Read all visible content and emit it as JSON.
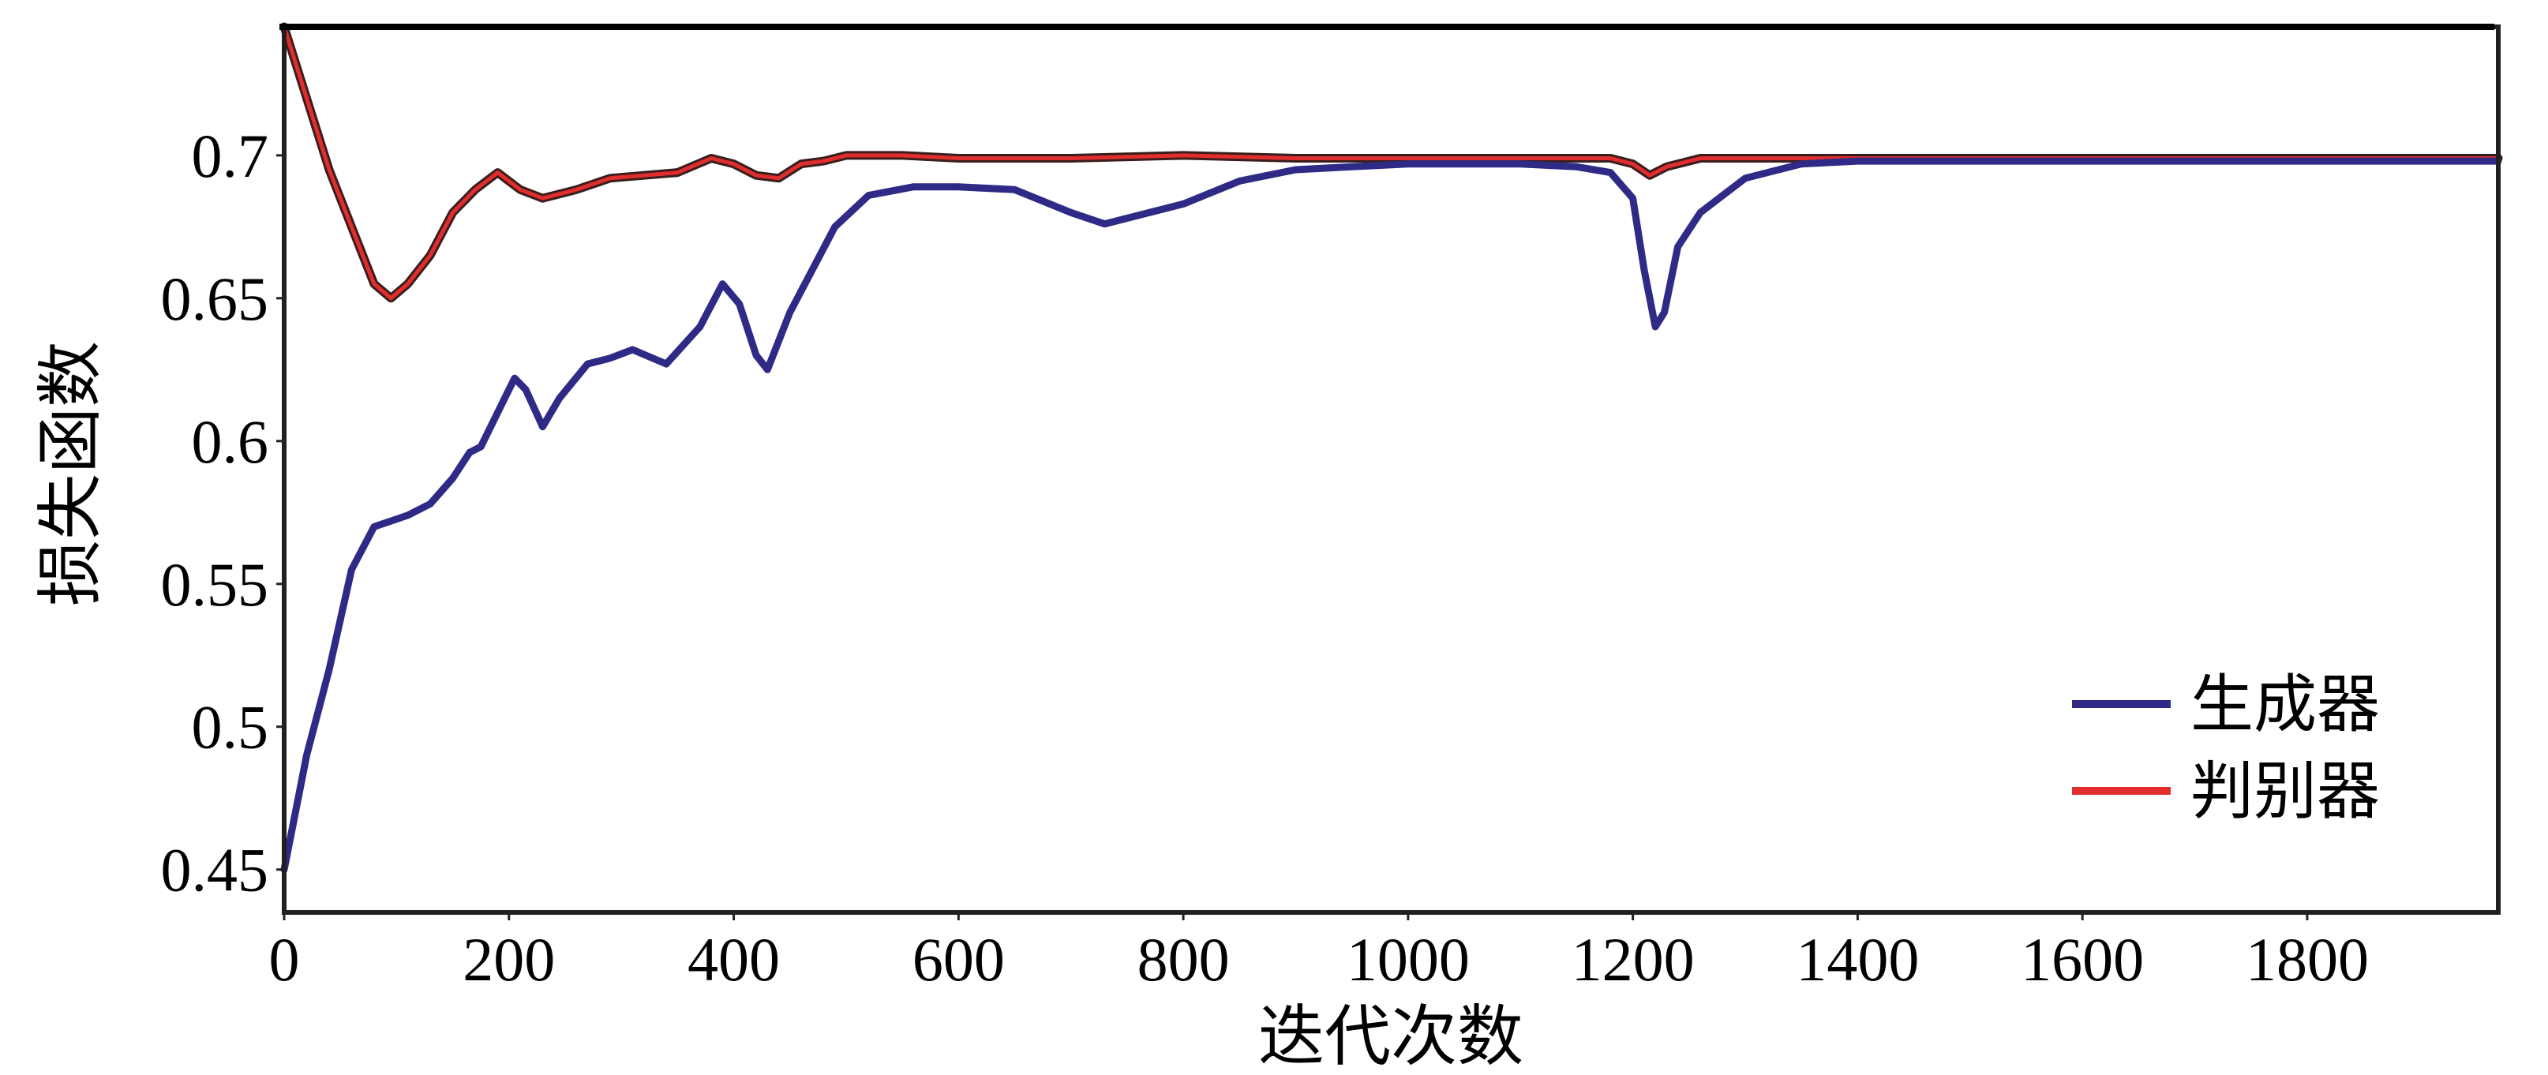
{
  "chart_data": {
    "type": "line",
    "title": "",
    "xlabel": "迭代次数",
    "ylabel": "损失函数",
    "xlim": [
      0,
      1970
    ],
    "ylim": [
      0.435,
      0.745
    ],
    "xticks": [
      0,
      200,
      400,
      600,
      800,
      1000,
      1200,
      1400,
      1600,
      1800
    ],
    "xtick_labels": [
      "0",
      "200",
      "400",
      "600",
      "800",
      "1000",
      "1200",
      "1400",
      "1600",
      "1800"
    ],
    "yticks": [
      0.45,
      0.5,
      0.55,
      0.6,
      0.65,
      0.7
    ],
    "ytick_labels": [
      "0.45",
      "0.5",
      "0.55",
      "0.6",
      "0.65",
      "0.7"
    ],
    "grid": false,
    "legend_position": "bottom-right",
    "series": [
      {
        "name": "生成器",
        "color": "#2e2a86",
        "x": [
          0,
          20,
          40,
          60,
          80,
          95,
          110,
          130,
          150,
          165,
          175,
          190,
          205,
          215,
          230,
          245,
          270,
          290,
          310,
          340,
          370,
          390,
          405,
          420,
          430,
          450,
          470,
          490,
          520,
          560,
          600,
          650,
          700,
          730,
          760,
          800,
          850,
          900,
          950,
          1000,
          1050,
          1100,
          1150,
          1180,
          1200,
          1210,
          1220,
          1228,
          1240,
          1260,
          1300,
          1350,
          1400,
          1500,
          1600,
          1700,
          1800,
          1900,
          1970
        ],
        "y": [
          0.45,
          0.49,
          0.52,
          0.555,
          0.57,
          0.572,
          0.574,
          0.578,
          0.587,
          0.596,
          0.598,
          0.61,
          0.622,
          0.618,
          0.605,
          0.615,
          0.627,
          0.629,
          0.632,
          0.627,
          0.64,
          0.655,
          0.648,
          0.63,
          0.625,
          0.645,
          0.66,
          0.675,
          0.686,
          0.689,
          0.689,
          0.688,
          0.68,
          0.676,
          0.679,
          0.683,
          0.691,
          0.695,
          0.696,
          0.697,
          0.697,
          0.697,
          0.696,
          0.694,
          0.685,
          0.66,
          0.64,
          0.645,
          0.668,
          0.68,
          0.692,
          0.697,
          0.698,
          0.698,
          0.698,
          0.698,
          0.698,
          0.698,
          0.698
        ]
      },
      {
        "name": "判别器",
        "color": "#e02d2d",
        "x": [
          0,
          20,
          40,
          60,
          80,
          95,
          110,
          130,
          150,
          170,
          190,
          210,
          230,
          260,
          290,
          320,
          350,
          380,
          400,
          420,
          440,
          460,
          480,
          500,
          550,
          600,
          700,
          800,
          900,
          1000,
          1100,
          1180,
          1200,
          1215,
          1230,
          1260,
          1300,
          1400,
          1500,
          1600,
          1700,
          1800,
          1900,
          1970
        ],
        "y": [
          0.745,
          0.72,
          0.695,
          0.675,
          0.655,
          0.65,
          0.655,
          0.665,
          0.68,
          0.688,
          0.694,
          0.688,
          0.685,
          0.688,
          0.692,
          0.693,
          0.694,
          0.699,
          0.697,
          0.693,
          0.692,
          0.697,
          0.698,
          0.7,
          0.7,
          0.699,
          0.699,
          0.7,
          0.699,
          0.699,
          0.699,
          0.699,
          0.697,
          0.693,
          0.696,
          0.699,
          0.699,
          0.699,
          0.699,
          0.699,
          0.699,
          0.699,
          0.699,
          0.699
        ]
      }
    ]
  }
}
